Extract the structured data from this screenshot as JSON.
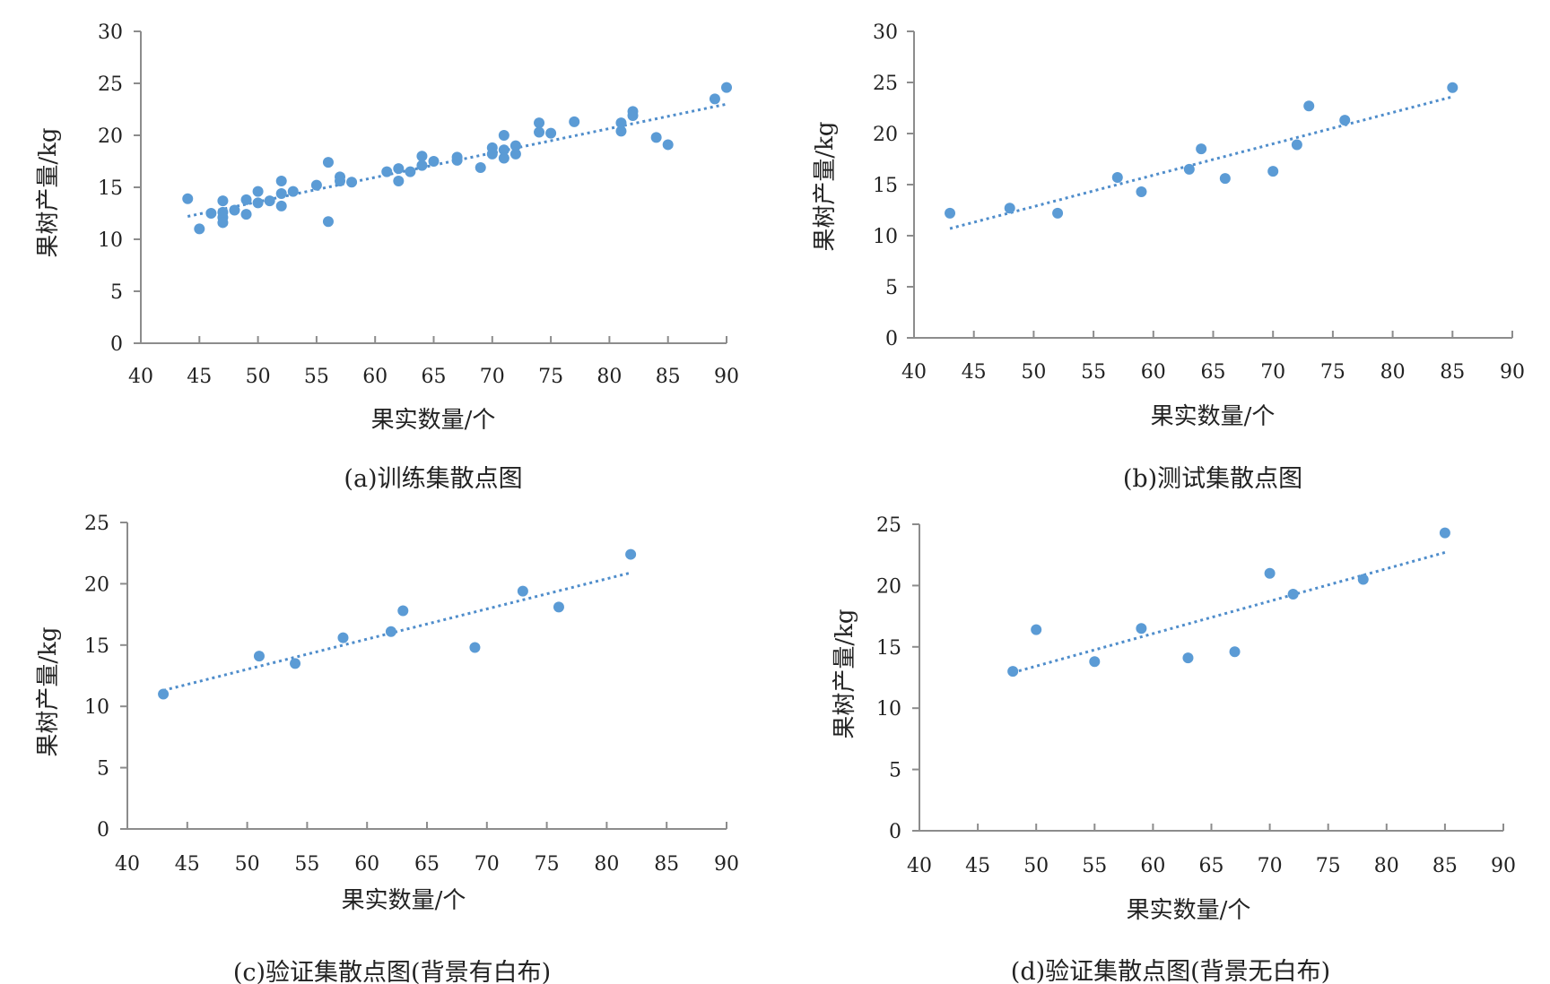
{
  "colors": {
    "marker": "#5b9bd5",
    "trendline": "#4f8dcb",
    "axis": "#8c8c8c"
  },
  "chart_data": [
    {
      "type": "scatter",
      "caption": "(a)训练集散点图",
      "xlabel": "果实数量/个",
      "ylabel": "果树产量/kg",
      "xlim": [
        40,
        90
      ],
      "ylim": [
        0,
        30
      ],
      "xticks": [
        40,
        45,
        50,
        55,
        60,
        65,
        70,
        75,
        80,
        85,
        90
      ],
      "yticks": [
        0,
        5,
        10,
        15,
        20,
        25,
        30
      ],
      "x_tick_labels": [
        "40",
        "45",
        "50",
        "55",
        "60",
        "65",
        "70",
        "75",
        "80",
        "85",
        "90"
      ],
      "y_tick_labels": [
        "0",
        "5",
        "10",
        "15",
        "20",
        "25",
        "30"
      ],
      "trendline": {
        "x": [
          44,
          90
        ],
        "y": [
          12.2,
          23.0
        ]
      },
      "points": [
        [
          44,
          13.9
        ],
        [
          45,
          11.0
        ],
        [
          46,
          12.5
        ],
        [
          47,
          13.7
        ],
        [
          47,
          12.6
        ],
        [
          47,
          12.1
        ],
        [
          47,
          11.6
        ],
        [
          48,
          12.8
        ],
        [
          49,
          13.8
        ],
        [
          49,
          12.4
        ],
        [
          50,
          14.6
        ],
        [
          50,
          13.5
        ],
        [
          51,
          13.7
        ],
        [
          52,
          15.6
        ],
        [
          52,
          14.4
        ],
        [
          52,
          13.2
        ],
        [
          53,
          14.6
        ],
        [
          55,
          15.2
        ],
        [
          56,
          17.4
        ],
        [
          56,
          11.7
        ],
        [
          57,
          16.0
        ],
        [
          57,
          15.6
        ],
        [
          58,
          15.5
        ],
        [
          61,
          16.5
        ],
        [
          62,
          16.8
        ],
        [
          62,
          15.6
        ],
        [
          63,
          16.5
        ],
        [
          64,
          18.0
        ],
        [
          64,
          17.1
        ],
        [
          65,
          17.5
        ],
        [
          67,
          17.9
        ],
        [
          67,
          17.6
        ],
        [
          69,
          16.9
        ],
        [
          70,
          18.8
        ],
        [
          70,
          18.2
        ],
        [
          71,
          20.0
        ],
        [
          71,
          18.6
        ],
        [
          71,
          17.8
        ],
        [
          72,
          19.0
        ],
        [
          72,
          18.2
        ],
        [
          74,
          21.2
        ],
        [
          74,
          20.3
        ],
        [
          75,
          20.2
        ],
        [
          77,
          21.3
        ],
        [
          81,
          21.2
        ],
        [
          81,
          20.4
        ],
        [
          82,
          22.3
        ],
        [
          82,
          21.9
        ],
        [
          84,
          19.8
        ],
        [
          85,
          19.1
        ],
        [
          89,
          23.5
        ],
        [
          90,
          24.6
        ]
      ]
    },
    {
      "type": "scatter",
      "caption": "(b)测试集散点图",
      "xlabel": "果实数量/个",
      "ylabel": "果树产量/kg",
      "xlim": [
        40,
        90
      ],
      "ylim": [
        0,
        30
      ],
      "xticks": [
        40,
        45,
        50,
        55,
        60,
        65,
        70,
        75,
        80,
        85,
        90
      ],
      "yticks": [
        0,
        5,
        10,
        15,
        20,
        25,
        30
      ],
      "x_tick_labels": [
        "40",
        "45",
        "50",
        "55",
        "60",
        "65",
        "70",
        "75",
        "80",
        "85",
        "90"
      ],
      "y_tick_labels": [
        "0",
        "5",
        "10",
        "15",
        "20",
        "25",
        "30"
      ],
      "trendline": {
        "x": [
          43,
          85
        ],
        "y": [
          10.7,
          23.6
        ]
      },
      "points": [
        [
          43,
          12.2
        ],
        [
          48,
          12.7
        ],
        [
          52,
          12.2
        ],
        [
          57,
          15.7
        ],
        [
          59,
          14.3
        ],
        [
          63,
          16.5
        ],
        [
          64,
          18.5
        ],
        [
          66,
          15.6
        ],
        [
          70,
          16.3
        ],
        [
          72,
          18.9
        ],
        [
          73,
          22.7
        ],
        [
          76,
          21.3
        ],
        [
          85,
          24.5
        ]
      ]
    },
    {
      "type": "scatter",
      "caption": "(c)验证集散点图(背景有白布)",
      "xlabel": "果实数量/个",
      "ylabel": "果树产量/kg",
      "xlim": [
        40,
        90
      ],
      "ylim": [
        0,
        25
      ],
      "xticks": [
        40,
        45,
        50,
        55,
        60,
        65,
        70,
        75,
        80,
        85,
        90
      ],
      "yticks": [
        0,
        5,
        10,
        15,
        20,
        25
      ],
      "x_tick_labels": [
        "40",
        "45",
        "50",
        "55",
        "60",
        "65",
        "70",
        "75",
        "80",
        "85",
        "90"
      ],
      "y_tick_labels": [
        "0",
        "5",
        "10",
        "15",
        "20",
        "25"
      ],
      "trendline": {
        "x": [
          43,
          82
        ],
        "y": [
          11.3,
          20.9
        ]
      },
      "points": [
        [
          43,
          11.0
        ],
        [
          51,
          14.1
        ],
        [
          54,
          13.5
        ],
        [
          58,
          15.6
        ],
        [
          62,
          16.1
        ],
        [
          63,
          17.8
        ],
        [
          69,
          14.8
        ],
        [
          73,
          19.4
        ],
        [
          76,
          18.1
        ],
        [
          82,
          22.4
        ]
      ]
    },
    {
      "type": "scatter",
      "caption": "(d)验证集散点图(背景无白布)",
      "xlabel": "果实数量/个",
      "ylabel": "果树产量/kg",
      "xlim": [
        40,
        90
      ],
      "ylim": [
        0,
        25
      ],
      "xticks": [
        40,
        45,
        50,
        55,
        60,
        65,
        70,
        75,
        80,
        85,
        90
      ],
      "yticks": [
        0,
        5,
        10,
        15,
        20,
        25
      ],
      "x_tick_labels": [
        "40",
        "45",
        "50",
        "55",
        "60",
        "65",
        "70",
        "75",
        "80",
        "85",
        "90"
      ],
      "y_tick_labels": [
        "0",
        "5",
        "10",
        "15",
        "20",
        "25"
      ],
      "trendline": {
        "x": [
          48,
          85
        ],
        "y": [
          12.9,
          22.7
        ]
      },
      "points": [
        [
          48,
          13.0
        ],
        [
          50,
          16.4
        ],
        [
          55,
          13.8
        ],
        [
          59,
          16.5
        ],
        [
          63,
          14.1
        ],
        [
          67,
          14.6
        ],
        [
          70,
          21.0
        ],
        [
          72,
          19.3
        ],
        [
          78,
          20.5
        ],
        [
          85,
          24.3
        ]
      ]
    }
  ]
}
